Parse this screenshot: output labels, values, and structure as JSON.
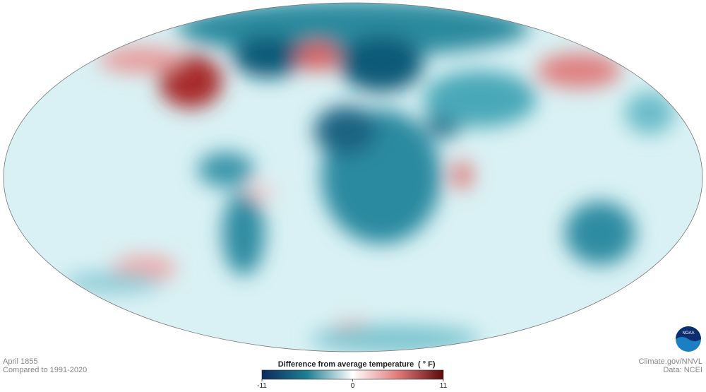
{
  "map": {
    "date": "April 1855",
    "baseline": "Compared to 1991-2020",
    "credit": "Climate.gov/NNVL",
    "source": "Data: NCEI"
  },
  "legend": {
    "title": "Difference from average temperature",
    "unit": "( ° F)",
    "ticks": [
      -11,
      0,
      11
    ]
  }
}
